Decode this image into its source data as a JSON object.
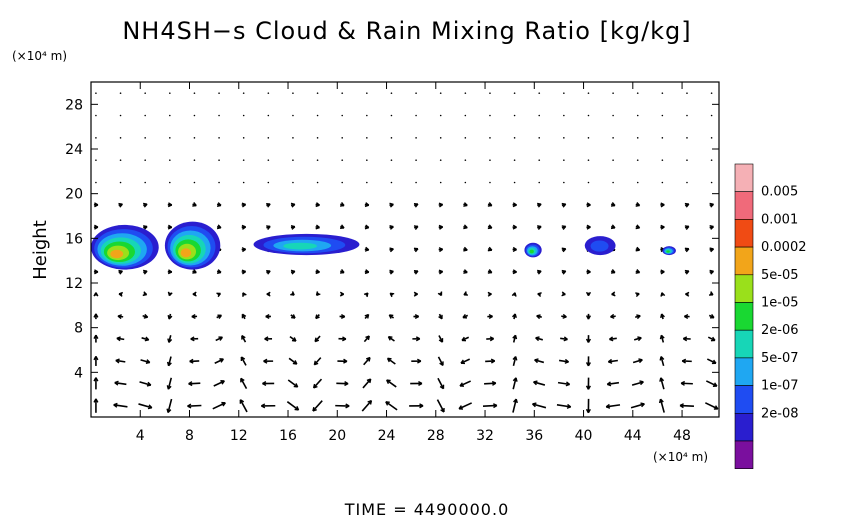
{
  "chart_data": {
    "type": "heatmap",
    "title": "NH4SH−s Cloud & Rain Mixing Ratio [kg/kg]",
    "ylabel": "Height",
    "y_unit_label": "(×10⁴ m)",
    "x_unit_label": "(×10⁴ m)",
    "footer": "TIME  =  4490000.0",
    "xlim": [
      0,
      51
    ],
    "ylim": [
      0,
      30
    ],
    "x_ticks": [
      4,
      8,
      12,
      16,
      20,
      24,
      28,
      32,
      36,
      40,
      44,
      48
    ],
    "y_ticks": [
      4,
      8,
      12,
      16,
      20,
      24,
      28
    ],
    "grid": false,
    "legend_position": "right",
    "legend": [
      {
        "label": "",
        "color": "#7a0f9e"
      },
      {
        "label": "2e-08",
        "color": "#2a1ecf"
      },
      {
        "label": "1e-07",
        "color": "#1f4cf2"
      },
      {
        "label": "5e-07",
        "color": "#1fa7f2"
      },
      {
        "label": "2e-06",
        "color": "#17d6b7"
      },
      {
        "label": "1e-05",
        "color": "#19d832"
      },
      {
        "label": "5e-05",
        "color": "#9ae01b"
      },
      {
        "label": "0.0002",
        "color": "#f2a51a"
      },
      {
        "label": "0.001",
        "color": "#f04b14"
      },
      {
        "label": "0.005",
        "color": "#f06a7a"
      },
      {
        "label": "",
        "color": "#f5b0b5"
      }
    ],
    "cloud_regions": [
      {
        "x": [
          0,
          5.5
        ],
        "y": [
          13.2,
          17.2
        ],
        "max_level": "0.0002"
      },
      {
        "x": [
          6,
          10.5
        ],
        "y": [
          13.2,
          17.5
        ],
        "max_level": "0.0002"
      },
      {
        "x": [
          13.2,
          21.8
        ],
        "y": [
          14.5,
          16.4
        ],
        "max_level": "2e-06"
      },
      {
        "x": [
          35.2,
          36.6
        ],
        "y": [
          14.3,
          15.6
        ],
        "max_level": "1e-05"
      },
      {
        "x": [
          40.1,
          42.6
        ],
        "y": [
          14.5,
          16.2
        ],
        "max_level": "1e-07"
      },
      {
        "x": [
          46.4,
          47.5
        ],
        "y": [
          14.5,
          15.3
        ],
        "max_level": "1e-05"
      }
    ]
  }
}
